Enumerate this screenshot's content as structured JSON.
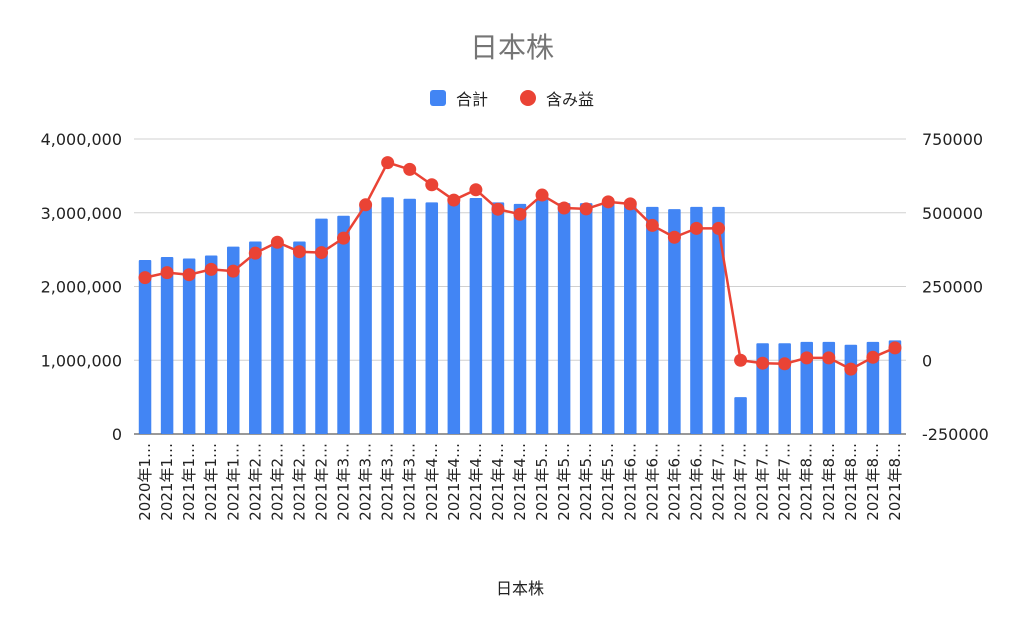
{
  "chart_data": {
    "type": "bar+line",
    "title": "日本株",
    "xlabel": "日本株",
    "legend": {
      "placement": "top",
      "items": [
        {
          "label": "合計",
          "color": "#4285F4",
          "marker": "square"
        },
        {
          "label": "含み益",
          "color": "#EA4335",
          "marker": "circle"
        }
      ]
    },
    "categories": [
      "2020年1…",
      "2021年1…",
      "2021年1…",
      "2021年1…",
      "2021年1…",
      "2021年2…",
      "2021年2…",
      "2021年2…",
      "2021年2…",
      "2021年3…",
      "2021年3…",
      "2021年3…",
      "2021年3…",
      "2021年4…",
      "2021年4…",
      "2021年4…",
      "2021年4…",
      "2021年4…",
      "2021年5…",
      "2021年5…",
      "2021年5…",
      "2021年5…",
      "2021年6…",
      "2021年6…",
      "2021年6…",
      "2021年6…",
      "2021年7…",
      "2021年7…",
      "2021年7…",
      "2021年7…",
      "2021年8…",
      "2021年8…",
      "2021年8…",
      "2021年8…",
      "2021年8…"
    ],
    "series": [
      {
        "name": "合計",
        "type": "bar",
        "axis": "left",
        "color": "#4285F4",
        "values": [
          2360000,
          2400000,
          2380000,
          2420000,
          2540000,
          2610000,
          2610000,
          2610000,
          2920000,
          2960000,
          3120000,
          3210000,
          3190000,
          3140000,
          3150000,
          3200000,
          3140000,
          3120000,
          3190000,
          3130000,
          3130000,
          3130000,
          3160000,
          3080000,
          3050000,
          3080000,
          3080000,
          500000,
          1230000,
          1230000,
          1250000,
          1250000,
          1210000,
          1250000,
          1270000
        ]
      },
      {
        "name": "含み益",
        "type": "line",
        "axis": "right",
        "color": "#EA4335",
        "values": [
          280000,
          297000,
          290000,
          308000,
          302000,
          363000,
          400000,
          368000,
          365000,
          414000,
          527000,
          670000,
          647000,
          595000,
          543000,
          578000,
          512000,
          495000,
          560000,
          516000,
          513000,
          537000,
          530000,
          457000,
          417000,
          447000,
          447000,
          0,
          -10000,
          -12000,
          8000,
          8000,
          -30000,
          10000,
          42000
        ]
      }
    ],
    "y_left": {
      "min": 0,
      "max": 4000000,
      "ticks": [
        "0",
        "1,000,000",
        "2,000,000",
        "3,000,000",
        "4,000,000"
      ]
    },
    "y_right": {
      "min": -250000,
      "max": 750000,
      "ticks": [
        "-250000",
        "0",
        "250000",
        "500000",
        "750000"
      ]
    },
    "grid": true
  }
}
